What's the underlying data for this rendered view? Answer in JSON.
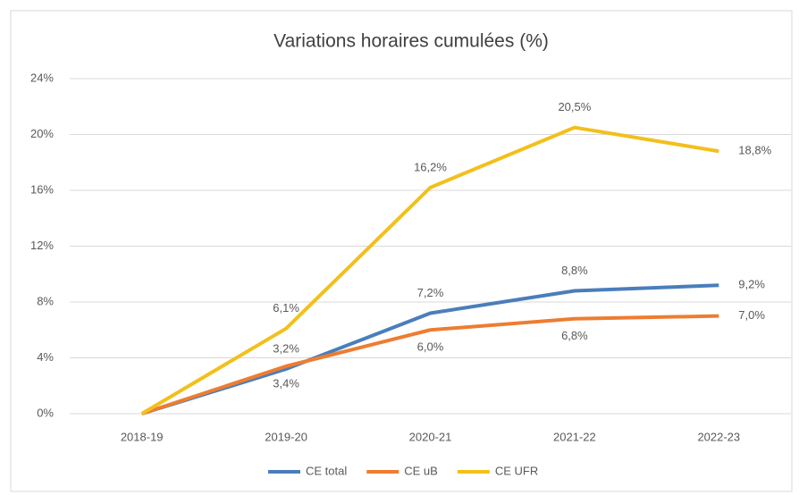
{
  "chart_data": {
    "type": "line",
    "title": "Variations horaires cumulées (%)",
    "categories": [
      "2018-19",
      "2019-20",
      "2020-21",
      "2021-22",
      "2022-23"
    ],
    "series": [
      {
        "name": "CE total",
        "color": "#4a7ebb",
        "values": [
          0,
          3.2,
          7.2,
          8.8,
          9.2
        ],
        "value_labels": [
          null,
          "3,2%",
          "7,2%",
          "8,8%",
          "9,2%"
        ]
      },
      {
        "name": "CE uB",
        "color": "#ed7d31",
        "values": [
          0,
          3.4,
          6.0,
          6.8,
          7.0
        ],
        "value_labels": [
          null,
          "3,4%",
          "6,0%",
          "6,8%",
          "7,0%"
        ]
      },
      {
        "name": "CE UFR",
        "color": "#f2c01c",
        "values": [
          0,
          6.1,
          16.2,
          20.5,
          18.8
        ],
        "value_labels": [
          null,
          "6,1%",
          "16,2%",
          "20,5%",
          "18,8%"
        ]
      }
    ],
    "ylim": [
      0,
      24
    ],
    "yticks": [
      {
        "value": 0,
        "label": "0%"
      },
      {
        "value": 4,
        "label": "4%"
      },
      {
        "value": 8,
        "label": "8%"
      },
      {
        "value": 12,
        "label": "12%"
      },
      {
        "value": 16,
        "label": "16%"
      },
      {
        "value": 20,
        "label": "20%"
      },
      {
        "value": 24,
        "label": "24%"
      }
    ],
    "grid": true,
    "legend": "bottom"
  }
}
